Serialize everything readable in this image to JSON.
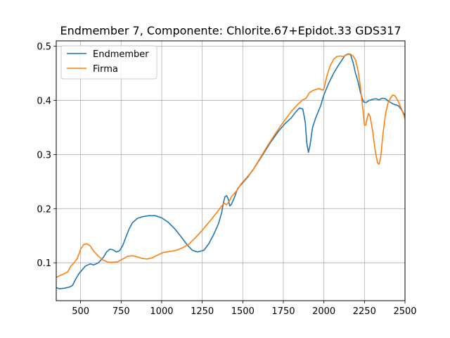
{
  "chart_data": {
    "type": "line",
    "title": "Endmember 7, Componente: Chlorite.67+Epidot.33 GDS317",
    "xlabel": "",
    "ylabel": "",
    "xlim": [
      350,
      2500
    ],
    "ylim": [
      0.03,
      0.51
    ],
    "x_ticks": [
      500,
      750,
      1000,
      1250,
      1500,
      1750,
      2000,
      2250,
      2500
    ],
    "y_ticks": [
      0.1,
      0.2,
      0.3,
      0.4,
      0.5
    ],
    "grid": true,
    "legend_position": "top-left",
    "series": [
      {
        "name": "Endmember",
        "color": "#1f77b4",
        "points": [
          [
            350,
            0.054
          ],
          [
            370,
            0.052
          ],
          [
            400,
            0.053
          ],
          [
            430,
            0.055
          ],
          [
            450,
            0.058
          ],
          [
            470,
            0.07
          ],
          [
            490,
            0.08
          ],
          [
            510,
            0.087
          ],
          [
            530,
            0.094
          ],
          [
            560,
            0.098
          ],
          [
            580,
            0.096
          ],
          [
            610,
            0.1
          ],
          [
            640,
            0.11
          ],
          [
            660,
            0.12
          ],
          [
            680,
            0.125
          ],
          [
            700,
            0.124
          ],
          [
            720,
            0.12
          ],
          [
            740,
            0.122
          ],
          [
            760,
            0.132
          ],
          [
            780,
            0.148
          ],
          [
            800,
            0.163
          ],
          [
            820,
            0.174
          ],
          [
            850,
            0.182
          ],
          [
            880,
            0.185
          ],
          [
            920,
            0.187
          ],
          [
            960,
            0.187
          ],
          [
            1000,
            0.183
          ],
          [
            1040,
            0.175
          ],
          [
            1080,
            0.163
          ],
          [
            1120,
            0.148
          ],
          [
            1160,
            0.132
          ],
          [
            1190,
            0.123
          ],
          [
            1220,
            0.12
          ],
          [
            1260,
            0.123
          ],
          [
            1290,
            0.135
          ],
          [
            1320,
            0.152
          ],
          [
            1350,
            0.172
          ],
          [
            1370,
            0.193
          ],
          [
            1380,
            0.21
          ],
          [
            1390,
            0.222
          ],
          [
            1400,
            0.224
          ],
          [
            1410,
            0.218
          ],
          [
            1420,
            0.205
          ],
          [
            1430,
            0.208
          ],
          [
            1450,
            0.222
          ],
          [
            1470,
            0.238
          ],
          [
            1500,
            0.248
          ],
          [
            1530,
            0.258
          ],
          [
            1570,
            0.275
          ],
          [
            1620,
            0.298
          ],
          [
            1670,
            0.322
          ],
          [
            1720,
            0.343
          ],
          [
            1760,
            0.357
          ],
          [
            1800,
            0.368
          ],
          [
            1830,
            0.38
          ],
          [
            1850,
            0.386
          ],
          [
            1870,
            0.384
          ],
          [
            1885,
            0.36
          ],
          [
            1895,
            0.32
          ],
          [
            1905,
            0.304
          ],
          [
            1915,
            0.318
          ],
          [
            1930,
            0.35
          ],
          [
            1950,
            0.368
          ],
          [
            1980,
            0.39
          ],
          [
            2000,
            0.41
          ],
          [
            2030,
            0.432
          ],
          [
            2060,
            0.45
          ],
          [
            2090,
            0.465
          ],
          [
            2110,
            0.474
          ],
          [
            2130,
            0.483
          ],
          [
            2150,
            0.486
          ],
          [
            2165,
            0.484
          ],
          [
            2180,
            0.47
          ],
          [
            2195,
            0.45
          ],
          [
            2210,
            0.435
          ],
          [
            2225,
            0.415
          ],
          [
            2235,
            0.405
          ],
          [
            2245,
            0.397
          ],
          [
            2260,
            0.396
          ],
          [
            2280,
            0.4
          ],
          [
            2300,
            0.402
          ],
          [
            2320,
            0.403
          ],
          [
            2340,
            0.401
          ],
          [
            2360,
            0.404
          ],
          [
            2380,
            0.403
          ],
          [
            2400,
            0.398
          ],
          [
            2430,
            0.393
          ],
          [
            2460,
            0.39
          ],
          [
            2480,
            0.382
          ],
          [
            2500,
            0.372
          ]
        ]
      },
      {
        "name": "Firma",
        "color": "#ff7f0e",
        "points": [
          [
            350,
            0.073
          ],
          [
            370,
            0.076
          ],
          [
            400,
            0.08
          ],
          [
            420,
            0.083
          ],
          [
            440,
            0.094
          ],
          [
            460,
            0.1
          ],
          [
            480,
            0.108
          ],
          [
            500,
            0.125
          ],
          [
            520,
            0.134
          ],
          [
            540,
            0.135
          ],
          [
            560,
            0.131
          ],
          [
            580,
            0.122
          ],
          [
            610,
            0.112
          ],
          [
            640,
            0.105
          ],
          [
            670,
            0.101
          ],
          [
            700,
            0.101
          ],
          [
            730,
            0.102
          ],
          [
            760,
            0.107
          ],
          [
            790,
            0.112
          ],
          [
            820,
            0.113
          ],
          [
            850,
            0.111
          ],
          [
            880,
            0.108
          ],
          [
            910,
            0.107
          ],
          [
            940,
            0.109
          ],
          [
            980,
            0.115
          ],
          [
            1010,
            0.119
          ],
          [
            1050,
            0.121
          ],
          [
            1090,
            0.123
          ],
          [
            1130,
            0.128
          ],
          [
            1170,
            0.135
          ],
          [
            1210,
            0.147
          ],
          [
            1250,
            0.16
          ],
          [
            1300,
            0.178
          ],
          [
            1340,
            0.193
          ],
          [
            1370,
            0.205
          ],
          [
            1385,
            0.21
          ],
          [
            1400,
            0.207
          ],
          [
            1415,
            0.213
          ],
          [
            1430,
            0.222
          ],
          [
            1460,
            0.232
          ],
          [
            1490,
            0.246
          ],
          [
            1520,
            0.256
          ],
          [
            1560,
            0.27
          ],
          [
            1600,
            0.29
          ],
          [
            1650,
            0.315
          ],
          [
            1700,
            0.338
          ],
          [
            1750,
            0.36
          ],
          [
            1800,
            0.38
          ],
          [
            1840,
            0.393
          ],
          [
            1870,
            0.401
          ],
          [
            1890,
            0.404
          ],
          [
            1910,
            0.414
          ],
          [
            1930,
            0.418
          ],
          [
            1950,
            0.42
          ],
          [
            1970,
            0.422
          ],
          [
            1990,
            0.419
          ],
          [
            2000,
            0.421
          ],
          [
            2020,
            0.447
          ],
          [
            2040,
            0.465
          ],
          [
            2060,
            0.476
          ],
          [
            2080,
            0.481
          ],
          [
            2100,
            0.482
          ],
          [
            2120,
            0.481
          ],
          [
            2140,
            0.484
          ],
          [
            2160,
            0.486
          ],
          [
            2180,
            0.482
          ],
          [
            2195,
            0.475
          ],
          [
            2210,
            0.456
          ],
          [
            2225,
            0.425
          ],
          [
            2240,
            0.385
          ],
          [
            2250,
            0.355
          ],
          [
            2258,
            0.354
          ],
          [
            2265,
            0.365
          ],
          [
            2275,
            0.376
          ],
          [
            2285,
            0.37
          ],
          [
            2300,
            0.345
          ],
          [
            2315,
            0.31
          ],
          [
            2330,
            0.285
          ],
          [
            2340,
            0.282
          ],
          [
            2350,
            0.295
          ],
          [
            2365,
            0.34
          ],
          [
            2380,
            0.375
          ],
          [
            2395,
            0.395
          ],
          [
            2410,
            0.404
          ],
          [
            2425,
            0.41
          ],
          [
            2440,
            0.408
          ],
          [
            2460,
            0.397
          ],
          [
            2480,
            0.383
          ],
          [
            2500,
            0.366
          ]
        ]
      }
    ]
  }
}
